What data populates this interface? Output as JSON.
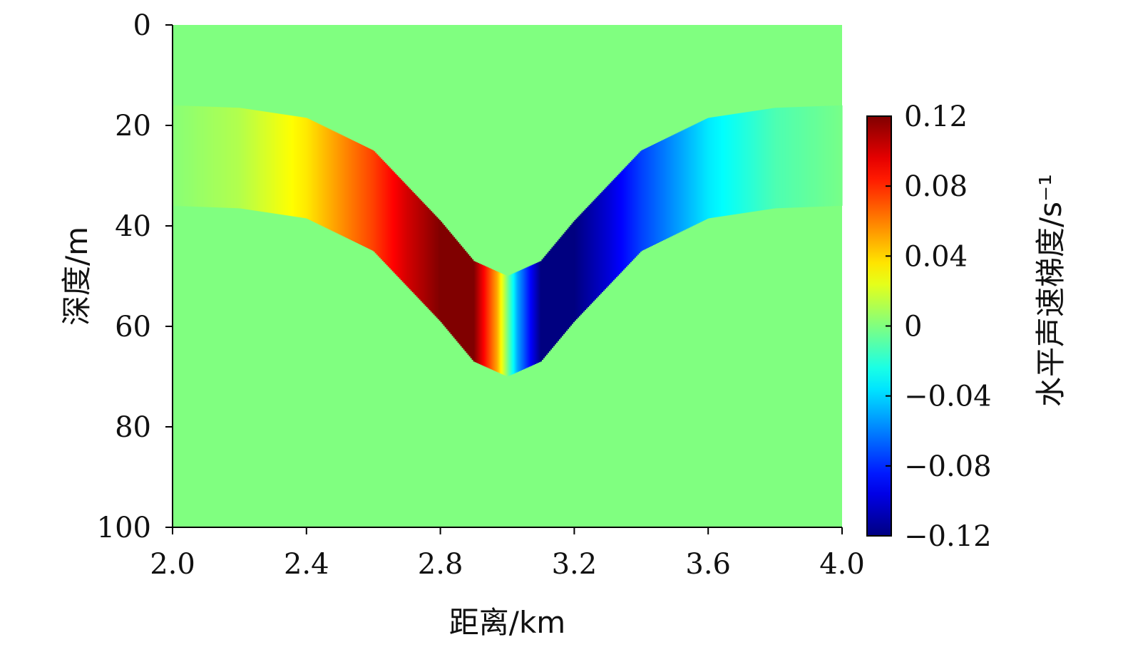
{
  "chart_data": {
    "type": "heatmap",
    "title": "",
    "xlabel": "距离/km",
    "ylabel": "深度/m",
    "colorbar_label": "水平声速梯度/s⁻¹",
    "xlim": [
      2.0,
      4.0
    ],
    "ylim": [
      0,
      100
    ],
    "y_inverted": true,
    "x_ticks": [
      "2.0",
      "2.4",
      "2.8",
      "3.2",
      "3.6",
      "4.0"
    ],
    "y_ticks": [
      "0",
      "20",
      "40",
      "60",
      "80",
      "100"
    ],
    "colorbar_range": [
      -0.12,
      0.12
    ],
    "colorbar_ticks": [
      "0.12",
      "0.08",
      "0.04",
      "0",
      "−0.04",
      "−0.08",
      "−0.12"
    ],
    "colormap": "jet",
    "background_value": 0,
    "feature": {
      "description": "thermocline layer with horizontal sound-speed gradient",
      "layer_thickness_m": 20,
      "upper_boundary_far_depth_m": 16,
      "upper_boundary_center_depth_m": 50,
      "center_km": 3.0,
      "boundary_samples": {
        "x_km": [
          2.0,
          2.2,
          2.4,
          2.6,
          2.8,
          2.9,
          3.0,
          3.1,
          3.2,
          3.4,
          3.6,
          3.8,
          4.0
        ],
        "upper_depth_m": [
          16,
          16.5,
          18.5,
          25,
          39,
          47,
          50,
          47,
          39,
          25,
          18.5,
          16.5,
          16
        ]
      },
      "gradient_samples": {
        "x_km": [
          2.0,
          2.2,
          2.4,
          2.6,
          2.7,
          2.8,
          2.9,
          2.97,
          3.0,
          3.03,
          3.1,
          3.2,
          3.3,
          3.4,
          3.6,
          3.8,
          4.0
        ],
        "value_s-1": [
          0.002,
          0.012,
          0.035,
          0.075,
          0.1,
          0.12,
          0.12,
          0.05,
          0,
          -0.05,
          -0.12,
          -0.12,
          -0.1,
          -0.075,
          -0.035,
          -0.012,
          -0.002
        ]
      }
    },
    "colors": {
      "background": "#7fff7f"
    }
  }
}
